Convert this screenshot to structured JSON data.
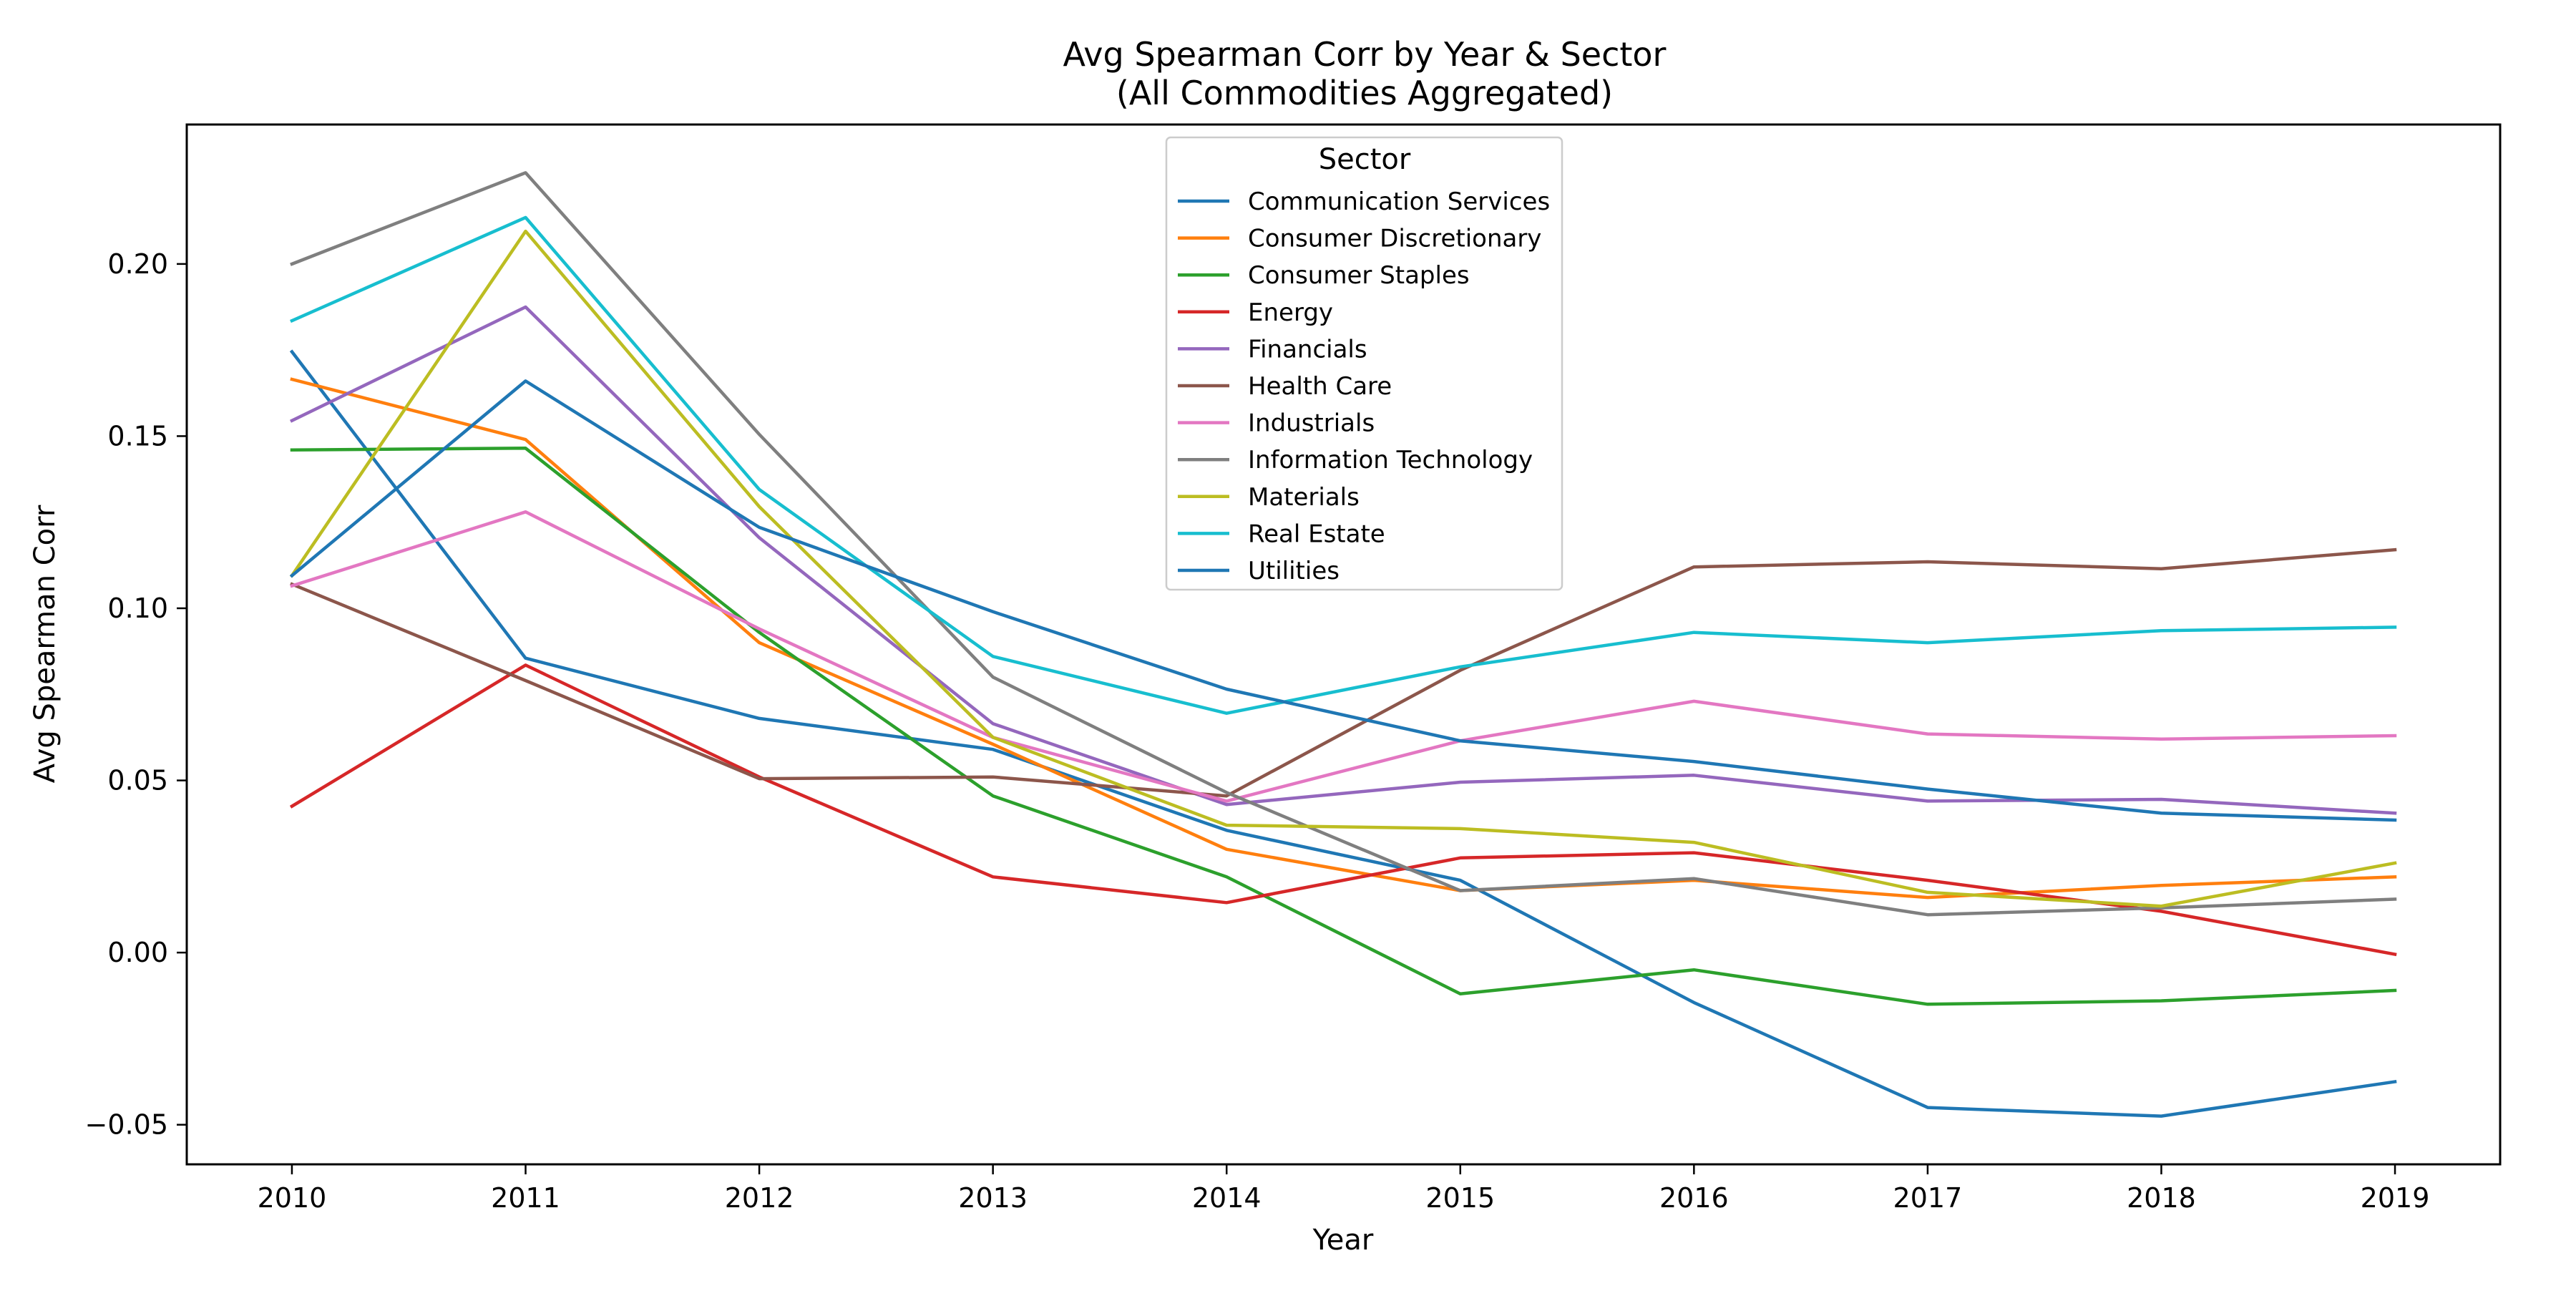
{
  "chart_data": {
    "type": "line",
    "title_line1": "Avg Spearman Corr by Year & Sector",
    "title_line2": "(All Commodities Aggregated)",
    "xlabel": "Year",
    "ylabel": "Avg Spearman Corr",
    "x": [
      2010,
      2011,
      2012,
      2013,
      2014,
      2015,
      2016,
      2017,
      2018,
      2019
    ],
    "x_tick_labels": [
      "2010",
      "2011",
      "2012",
      "2013",
      "2014",
      "2015",
      "2016",
      "2017",
      "2018",
      "2019"
    ],
    "xlim": [
      2009.55,
      2019.45
    ],
    "ylim": [
      -0.0615,
      0.2405
    ],
    "y_ticks": [
      -0.05,
      0.0,
      0.05,
      0.1,
      0.15,
      0.2
    ],
    "y_tick_labels": [
      "−0.05",
      "0.00",
      "0.05",
      "0.10",
      "0.15",
      "0.20"
    ],
    "grid": false,
    "legend": {
      "title": "Sector",
      "placement": "top-center"
    },
    "series": [
      {
        "name": "Communication Services",
        "color": "#1f77b4",
        "values": [
          0.1745,
          0.0855,
          0.068,
          0.059,
          0.0355,
          0.021,
          -0.0145,
          -0.045,
          -0.0475,
          -0.0375
        ]
      },
      {
        "name": "Consumer Discretionary",
        "color": "#ff7f0e",
        "values": [
          0.1665,
          0.149,
          0.09,
          0.0605,
          0.03,
          0.018,
          0.021,
          0.016,
          0.0195,
          0.022
        ]
      },
      {
        "name": "Consumer Staples",
        "color": "#2ca02c",
        "values": [
          0.146,
          0.1465,
          0.093,
          0.0455,
          0.022,
          -0.012,
          -0.005,
          -0.015,
          -0.014,
          -0.011
        ]
      },
      {
        "name": "Energy",
        "color": "#d62728",
        "values": [
          0.0425,
          0.0835,
          0.051,
          0.022,
          0.0145,
          0.0275,
          0.029,
          0.021,
          0.012,
          -0.0005
        ]
      },
      {
        "name": "Financials",
        "color": "#9467bd",
        "values": [
          0.1545,
          0.1875,
          0.1205,
          0.0665,
          0.043,
          0.0495,
          0.0515,
          0.044,
          0.0445,
          0.0405
        ]
      },
      {
        "name": "Health Care",
        "color": "#8c564b",
        "values": [
          0.107,
          0.079,
          0.0505,
          0.051,
          0.0455,
          0.082,
          0.112,
          0.1135,
          0.1115,
          0.117
        ]
      },
      {
        "name": "Industrials",
        "color": "#e377c2",
        "values": [
          0.1065,
          0.128,
          0.094,
          0.0625,
          0.044,
          0.0615,
          0.073,
          0.0635,
          0.062,
          0.063
        ]
      },
      {
        "name": "Information Technology",
        "color": "#7f7f7f",
        "values": [
          0.2,
          0.2265,
          0.1505,
          0.08,
          0.0465,
          0.018,
          0.0215,
          0.011,
          0.013,
          0.0155
        ]
      },
      {
        "name": "Materials",
        "color": "#bcbd22",
        "values": [
          0.1095,
          0.2095,
          0.1295,
          0.0625,
          0.037,
          0.036,
          0.032,
          0.0175,
          0.0135,
          0.026
        ]
      },
      {
        "name": "Real Estate",
        "color": "#17becf",
        "values": [
          0.1835,
          0.2135,
          0.1345,
          0.086,
          0.0695,
          0.083,
          0.093,
          0.09,
          0.0935,
          0.0945
        ]
      },
      {
        "name": "Utilities",
        "color": "#1f77b4",
        "values": [
          0.1095,
          0.166,
          0.1235,
          0.099,
          0.0765,
          0.0615,
          0.0555,
          0.0475,
          0.0405,
          0.0385
        ]
      }
    ]
  }
}
